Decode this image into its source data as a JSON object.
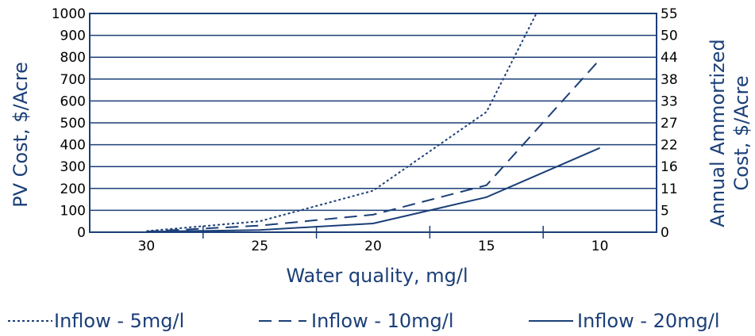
{
  "chart_data": {
    "type": "line",
    "title": "",
    "xlabel": "Water quality, mg/l",
    "ylabel": "PV Cost, $/Acre",
    "y2label_line1": "Annual  Ammortized",
    "y2label_line2": "Cost, $/Acre",
    "x_ticks": [
      30,
      25,
      20,
      15,
      10
    ],
    "x_tick_labels": [
      "30",
      "25",
      "20",
      "15",
      "10"
    ],
    "xlim": [
      32.5,
      7.5
    ],
    "x_reversed": true,
    "ylim": [
      0,
      1000
    ],
    "y_ticks": [
      0,
      100,
      200,
      300,
      400,
      500,
      600,
      700,
      800,
      900,
      1000
    ],
    "y_tick_labels": [
      "0",
      "100",
      "200",
      "300",
      "400",
      "500",
      "600",
      "700",
      "800",
      "900",
      "1000"
    ],
    "y2_tick_labels": [
      "0",
      "5",
      "11",
      "16",
      "22",
      "27",
      "33",
      "38",
      "44",
      "50",
      "55"
    ],
    "grid": "horizontal",
    "legend_position": "bottom",
    "series": [
      {
        "name": "Inflow - 5mg/l",
        "style": "dotted",
        "x": [
          30,
          25,
          20,
          15,
          12.8
        ],
        "y": [
          5,
          50,
          190,
          550,
          1000
        ]
      },
      {
        "name": "Inflow - 10mg/l",
        "style": "dashed",
        "x": [
          30,
          25,
          20,
          15,
          10
        ],
        "y": [
          3,
          30,
          80,
          215,
          790
        ]
      },
      {
        "name": "Inflow - 20mg/l",
        "style": "solid",
        "x": [
          30,
          25,
          20,
          15,
          10
        ],
        "y": [
          2,
          10,
          40,
          160,
          385
        ]
      }
    ]
  },
  "colors": {
    "line": "#1b3f78",
    "text": "#000000",
    "accent": "#1b3f78"
  }
}
